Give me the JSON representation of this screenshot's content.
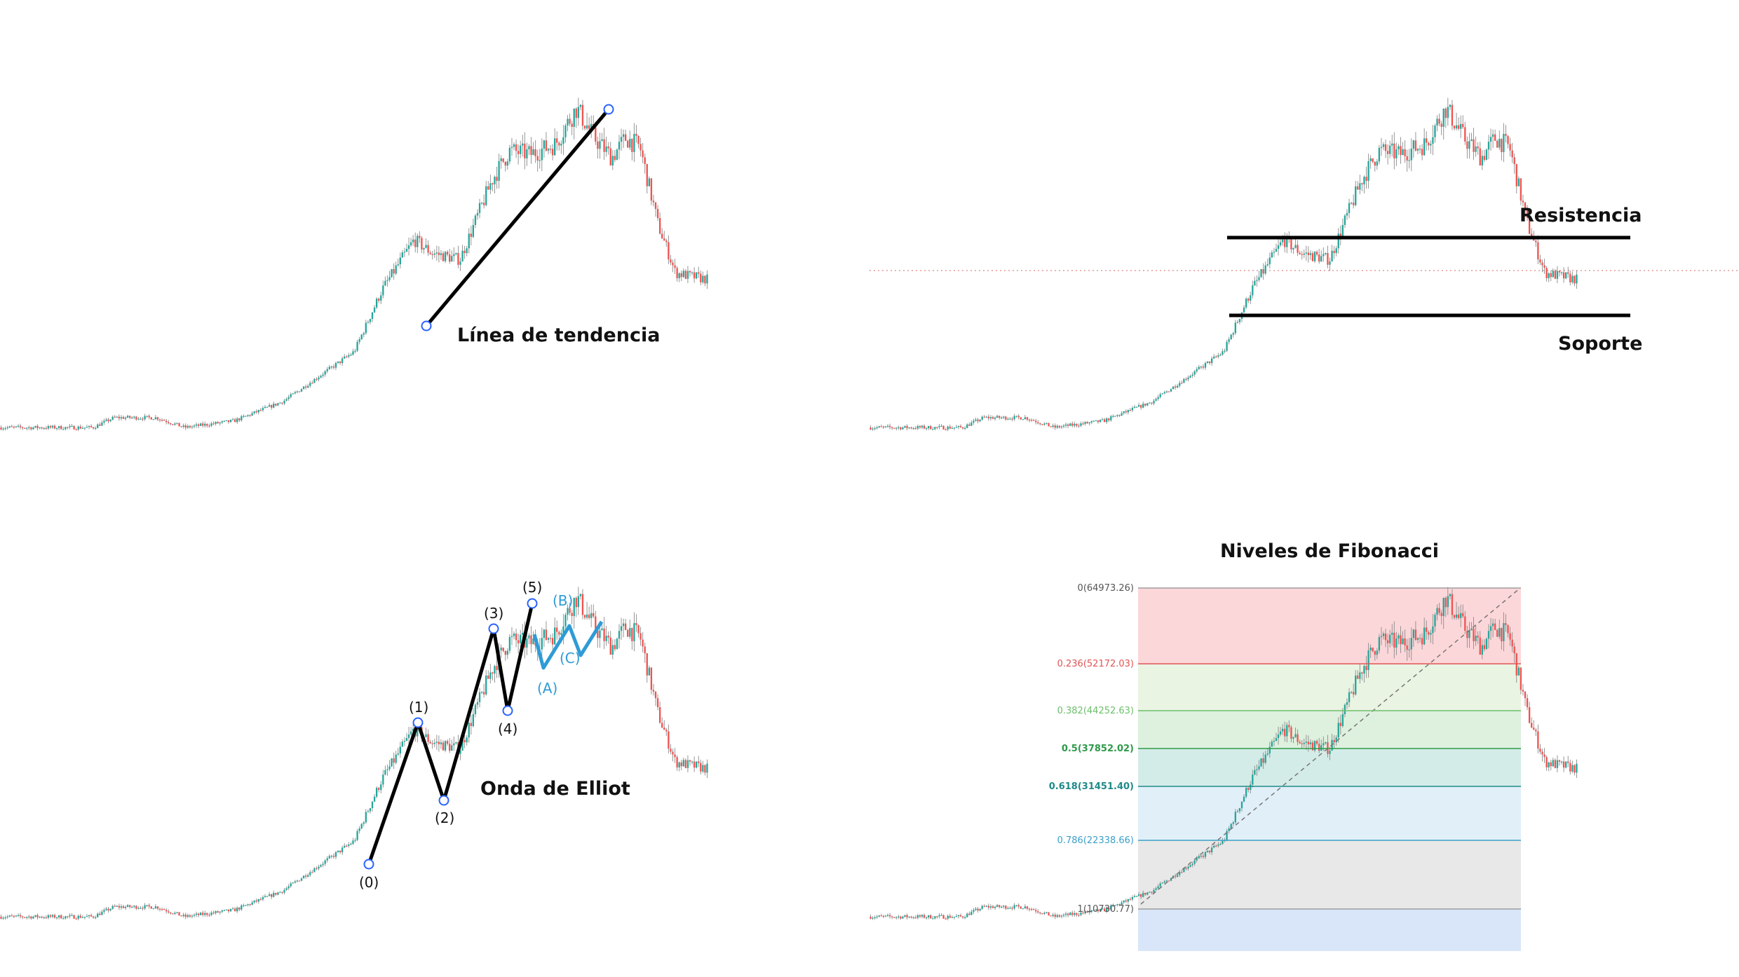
{
  "chart_data": [
    {
      "type": "candlestick",
      "title": "",
      "annotation": "Línea de tendencia",
      "shows": "trendline"
    },
    {
      "type": "candlestick",
      "title": "",
      "annotations": {
        "resistance": "Resistencia",
        "support": "Soporte"
      },
      "shows": "support-resistance"
    },
    {
      "type": "candlestick",
      "title": "",
      "annotation": "Onda de Elliot",
      "impulse_labels": [
        "(0)",
        "(1)",
        "(2)",
        "(3)",
        "(4)",
        "(5)"
      ],
      "correction_labels": [
        "(A)",
        "(B)",
        "(C)"
      ],
      "shows": "elliott-wave"
    },
    {
      "type": "candlestick",
      "title": "Niveles de Fibonacci",
      "fib_levels": [
        {
          "ratio": 0,
          "price": 64973.26,
          "label": "0(64973.26)",
          "line_color": "#9e9e9e",
          "band_color": "#fbd0d3"
        },
        {
          "ratio": 0.236,
          "price": 52172.03,
          "label": "0.236(52172.03)",
          "line_color": "#e05555",
          "band_color": "#e6f2de"
        },
        {
          "ratio": 0.382,
          "price": 44252.63,
          "label": "0.382(44252.63)",
          "line_color": "#6cbf6c",
          "band_color": "#d8edd8"
        },
        {
          "ratio": 0.5,
          "price": 37852.02,
          "label": "0.5(37852.02)",
          "line_color": "#2e9a4a",
          "band_color": "#cde9e4"
        },
        {
          "ratio": 0.618,
          "price": 31451.4,
          "label": "0.618(31451.40)",
          "line_color": "#1f8a88",
          "band_color": "#dcecf8"
        },
        {
          "ratio": 0.786,
          "price": 22338.66,
          "label": "0.786(22338.66)",
          "line_color": "#3aa0c8",
          "band_color": "#e4e4e4"
        },
        {
          "ratio": 1,
          "price": 10730.77,
          "label": "1(10730.77)",
          "line_color": "#9e9e9e",
          "band_color": "#d2e2f8"
        }
      ],
      "shows": "fibonacci-retracement"
    }
  ],
  "colors": {
    "up_candle": "#26a69a",
    "down_candle": "#ef5350",
    "wick": "#8a8a8a",
    "drawing": "#000000",
    "elliott_correction": "#2e9bd6",
    "price_line": "#e39a9a"
  }
}
